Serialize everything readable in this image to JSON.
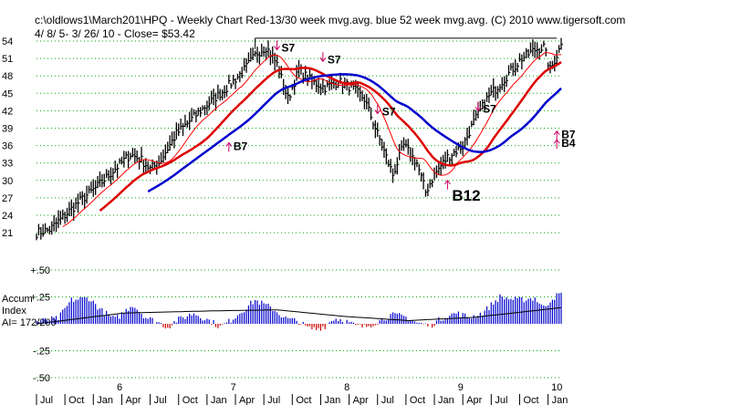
{
  "header": {
    "line1": "c:\\oldlows1\\March201\\HPQ  - Weekly Chart  Red-13/30 week mvg.avg.  blue 52 week mvg.avg.  (C) 2010 www.tigersoft.com",
    "line2": "4/ 8/ 5- 3/ 26/ 10 -     Close= $53.42"
  },
  "accum_label": {
    "line1": "Accum",
    "line2": "Index",
    "line3": "AI= 172/200"
  },
  "colors": {
    "price_bar": "#000000",
    "ma13": "#ff0000",
    "ma30": "#dd0000",
    "ma52": "#0000cc",
    "accum_pos": "#0000cc",
    "accum_neg": "#cc0000",
    "grid": "#00aa00",
    "arrow": "#cc0066"
  },
  "chart_data": [
    {
      "type": "line",
      "title": "HPQ - Weekly Chart",
      "y_ticks": [
        "54",
        "51",
        "48",
        "45",
        "42",
        "39",
        "36",
        "33",
        "30",
        "27",
        "24",
        "21"
      ],
      "ylim": [
        19.5,
        55
      ],
      "x_year_labels": [
        "6",
        "7",
        "8",
        "9",
        "10"
      ],
      "x_month_labels": [
        "Jul",
        "Oct",
        "Jan",
        "Apr",
        "Jul",
        "Oct",
        "Jan",
        "Apr",
        "Jul",
        "Oct",
        "Jan",
        "Apr",
        "Jul",
        "Oct",
        "Jan",
        "Apr",
        "Jul",
        "Oct",
        "Jan"
      ],
      "grid": true,
      "resistance_line": 54.5,
      "series": [
        {
          "name": "13 week mvg.avg.",
          "color": "#ff0000"
        },
        {
          "name": "30 week mvg.avg.",
          "color": "#dd0000"
        },
        {
          "name": "52 week mvg.avg.",
          "color": "#0000cc"
        }
      ],
      "anchors_close": [
        [
          0,
          21
        ],
        [
          6,
          21.5
        ],
        [
          13,
          24
        ],
        [
          20,
          26.5
        ],
        [
          28,
          29
        ],
        [
          36,
          32
        ],
        [
          43,
          34.5
        ],
        [
          48,
          33.5
        ],
        [
          52,
          32
        ],
        [
          56,
          33
        ],
        [
          64,
          38
        ],
        [
          75,
          42
        ],
        [
          87,
          46
        ],
        [
          95,
          49
        ],
        [
          101,
          52
        ],
        [
          105,
          53
        ],
        [
          110,
          50
        ],
        [
          115,
          44
        ],
        [
          120,
          49
        ],
        [
          126,
          47
        ],
        [
          132,
          46
        ],
        [
          138,
          47
        ],
        [
          144,
          46
        ],
        [
          150,
          44
        ],
        [
          155,
          39
        ],
        [
          160,
          34
        ],
        [
          163,
          31
        ],
        [
          168,
          36
        ],
        [
          174,
          33
        ],
        [
          178,
          28
        ],
        [
          182,
          31
        ],
        [
          188,
          34
        ],
        [
          195,
          36
        ],
        [
          200,
          40
        ],
        [
          206,
          44
        ],
        [
          215,
          48
        ],
        [
          222,
          51
        ],
        [
          228,
          52.5
        ],
        [
          232,
          53
        ],
        [
          235,
          49
        ],
        [
          240,
          53.4
        ]
      ],
      "close": 53.42,
      "signals": [
        {
          "label": "S7",
          "week": 110,
          "price": 52.5,
          "dir": "down"
        },
        {
          "label": "S7",
          "week": 131,
          "price": 50.5,
          "dir": "down"
        },
        {
          "label": "S7",
          "week": 156,
          "price": 41.5,
          "dir": "down"
        },
        {
          "label": "S7",
          "week": 202,
          "price": 42.0,
          "dir": "down"
        },
        {
          "label": "B7",
          "week": 88,
          "price": 36.5,
          "dir": "up"
        },
        {
          "label": "B12",
          "week": 188,
          "price": 30.0,
          "dir": "up"
        },
        {
          "label": "B7",
          "week": 238,
          "price": 38.5,
          "dir": "up"
        },
        {
          "label": "B4",
          "week": 238,
          "price": 37.0,
          "dir": "up"
        }
      ]
    },
    {
      "type": "bar",
      "title": "Accum Index",
      "y_ticks": [
        "+.50",
        "+.25",
        "-.25",
        "-.50"
      ],
      "ylim": [
        -0.55,
        0.55
      ],
      "anchors": [
        [
          0,
          0.02
        ],
        [
          10,
          0.05
        ],
        [
          16,
          0.22
        ],
        [
          24,
          0.24
        ],
        [
          30,
          0.12
        ],
        [
          36,
          0.04
        ],
        [
          44,
          0.18
        ],
        [
          50,
          0.06
        ],
        [
          56,
          0.01
        ],
        [
          60,
          -0.03
        ],
        [
          64,
          0.03
        ],
        [
          72,
          0.1
        ],
        [
          80,
          0.02
        ],
        [
          84,
          -0.03
        ],
        [
          88,
          0.02
        ],
        [
          94,
          0.12
        ],
        [
          100,
          0.22
        ],
        [
          108,
          0.14
        ],
        [
          114,
          0.05
        ],
        [
          120,
          0.02
        ],
        [
          124,
          -0.04
        ],
        [
          128,
          -0.05
        ],
        [
          132,
          -0.02
        ],
        [
          136,
          0.05
        ],
        [
          140,
          0.04
        ],
        [
          146,
          -0.02
        ],
        [
          150,
          -0.03
        ],
        [
          156,
          0.02
        ],
        [
          162,
          0.08
        ],
        [
          168,
          0.07
        ],
        [
          174,
          0.01
        ],
        [
          180,
          -0.02
        ],
        [
          186,
          0.06
        ],
        [
          192,
          0.1
        ],
        [
          198,
          0.06
        ],
        [
          204,
          0.1
        ],
        [
          212,
          0.25
        ],
        [
          220,
          0.22
        ],
        [
          228,
          0.24
        ],
        [
          232,
          0.15
        ],
        [
          236,
          0.24
        ],
        [
          240,
          0.28
        ]
      ],
      "average_anchors": [
        [
          0,
          0.0
        ],
        [
          40,
          0.1
        ],
        [
          80,
          0.12
        ],
        [
          110,
          0.13
        ],
        [
          140,
          0.07
        ],
        [
          170,
          0.03
        ],
        [
          200,
          0.06
        ],
        [
          240,
          0.15
        ]
      ],
      "weeks": 241
    }
  ]
}
